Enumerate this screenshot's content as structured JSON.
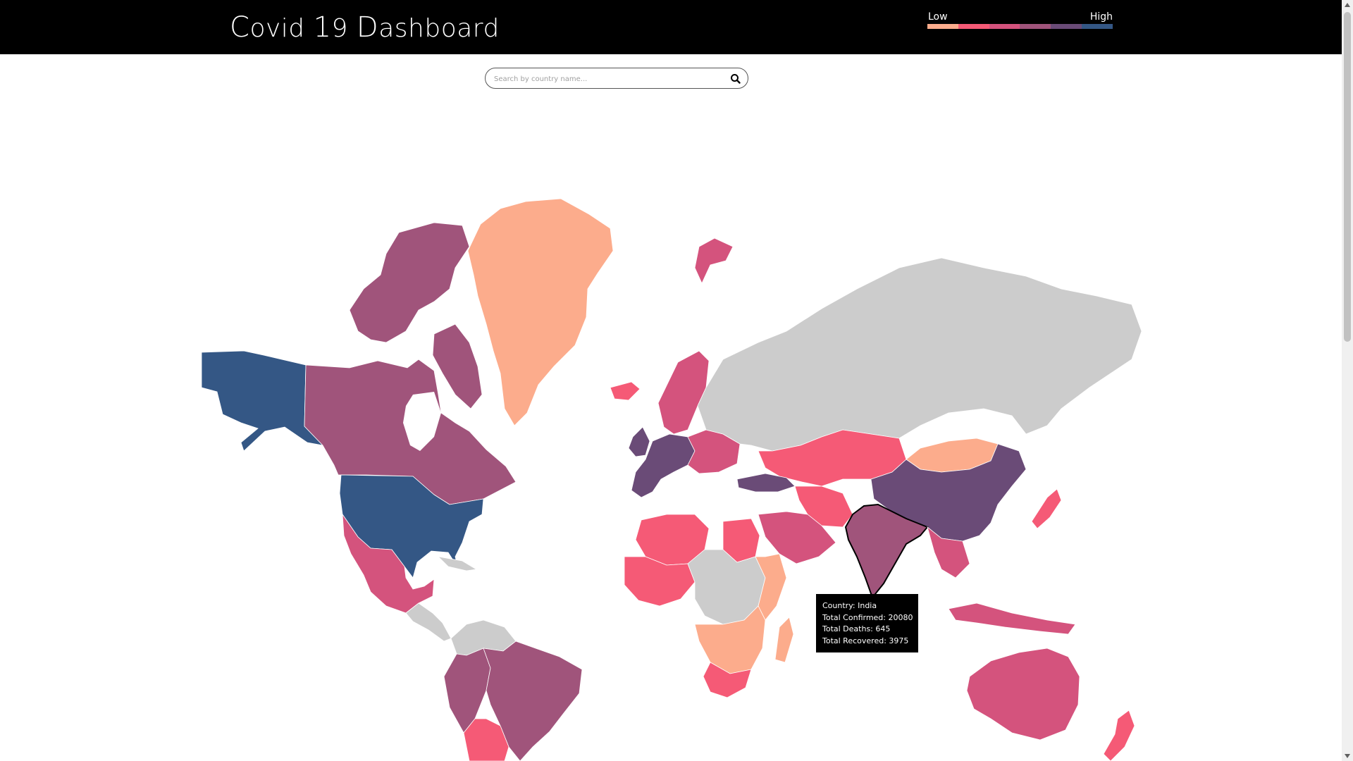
{
  "header": {
    "title": "Covid 19 Dashboard"
  },
  "legend": {
    "low_label": "Low",
    "high_label": "High",
    "colors": [
      "#fcac8c",
      "#f55a76",
      "#d4537d",
      "#a0547b",
      "#6a4b77",
      "#345785"
    ]
  },
  "search": {
    "placeholder": "Search by country name...",
    "value": ""
  },
  "map": {
    "no_data_color": "#cccccc",
    "selected_country": "India",
    "countries": [
      {
        "name": "United States",
        "level": 5
      },
      {
        "name": "Alaska",
        "level": 5
      },
      {
        "name": "Canada",
        "level": 3
      },
      {
        "name": "Greenland",
        "level": 0
      },
      {
        "name": "Mexico",
        "level": 2
      },
      {
        "name": "Brazil",
        "level": 3
      },
      {
        "name": "Peru",
        "level": 3
      },
      {
        "name": "Argentina",
        "level": 1
      },
      {
        "name": "Russia",
        "level": -1
      },
      {
        "name": "China",
        "level": 4
      },
      {
        "name": "India",
        "level": 3
      },
      {
        "name": "Australia",
        "level": 2
      },
      {
        "name": "Kazakhstan",
        "level": 1
      },
      {
        "name": "Mongolia",
        "level": 0
      },
      {
        "name": "Algeria",
        "level": 1
      },
      {
        "name": "Egypt",
        "level": 1
      },
      {
        "name": "Saudi Arabia",
        "level": 2
      },
      {
        "name": "DR Congo",
        "level": -1
      },
      {
        "name": "South Africa",
        "level": 1
      },
      {
        "name": "Indonesia",
        "level": 2
      },
      {
        "name": "Iceland",
        "level": 1
      },
      {
        "name": "Madagascar",
        "level": 0
      },
      {
        "name": "Japan",
        "level": 1
      },
      {
        "name": "New Zealand",
        "level": 1
      },
      {
        "name": "Svalbard",
        "level": 2
      },
      {
        "name": "Western Europe",
        "level": 4
      },
      {
        "name": "Scandinavia",
        "level": 2
      },
      {
        "name": "Turkey",
        "level": 4
      },
      {
        "name": "Iran",
        "level": 1
      }
    ]
  },
  "tooltip": {
    "country_line": "Country: India",
    "confirmed_line": "Total Confirmed: 20080",
    "deaths_line": "Total Deaths: 645",
    "recovered_line": "Total Recovered: 3975"
  }
}
